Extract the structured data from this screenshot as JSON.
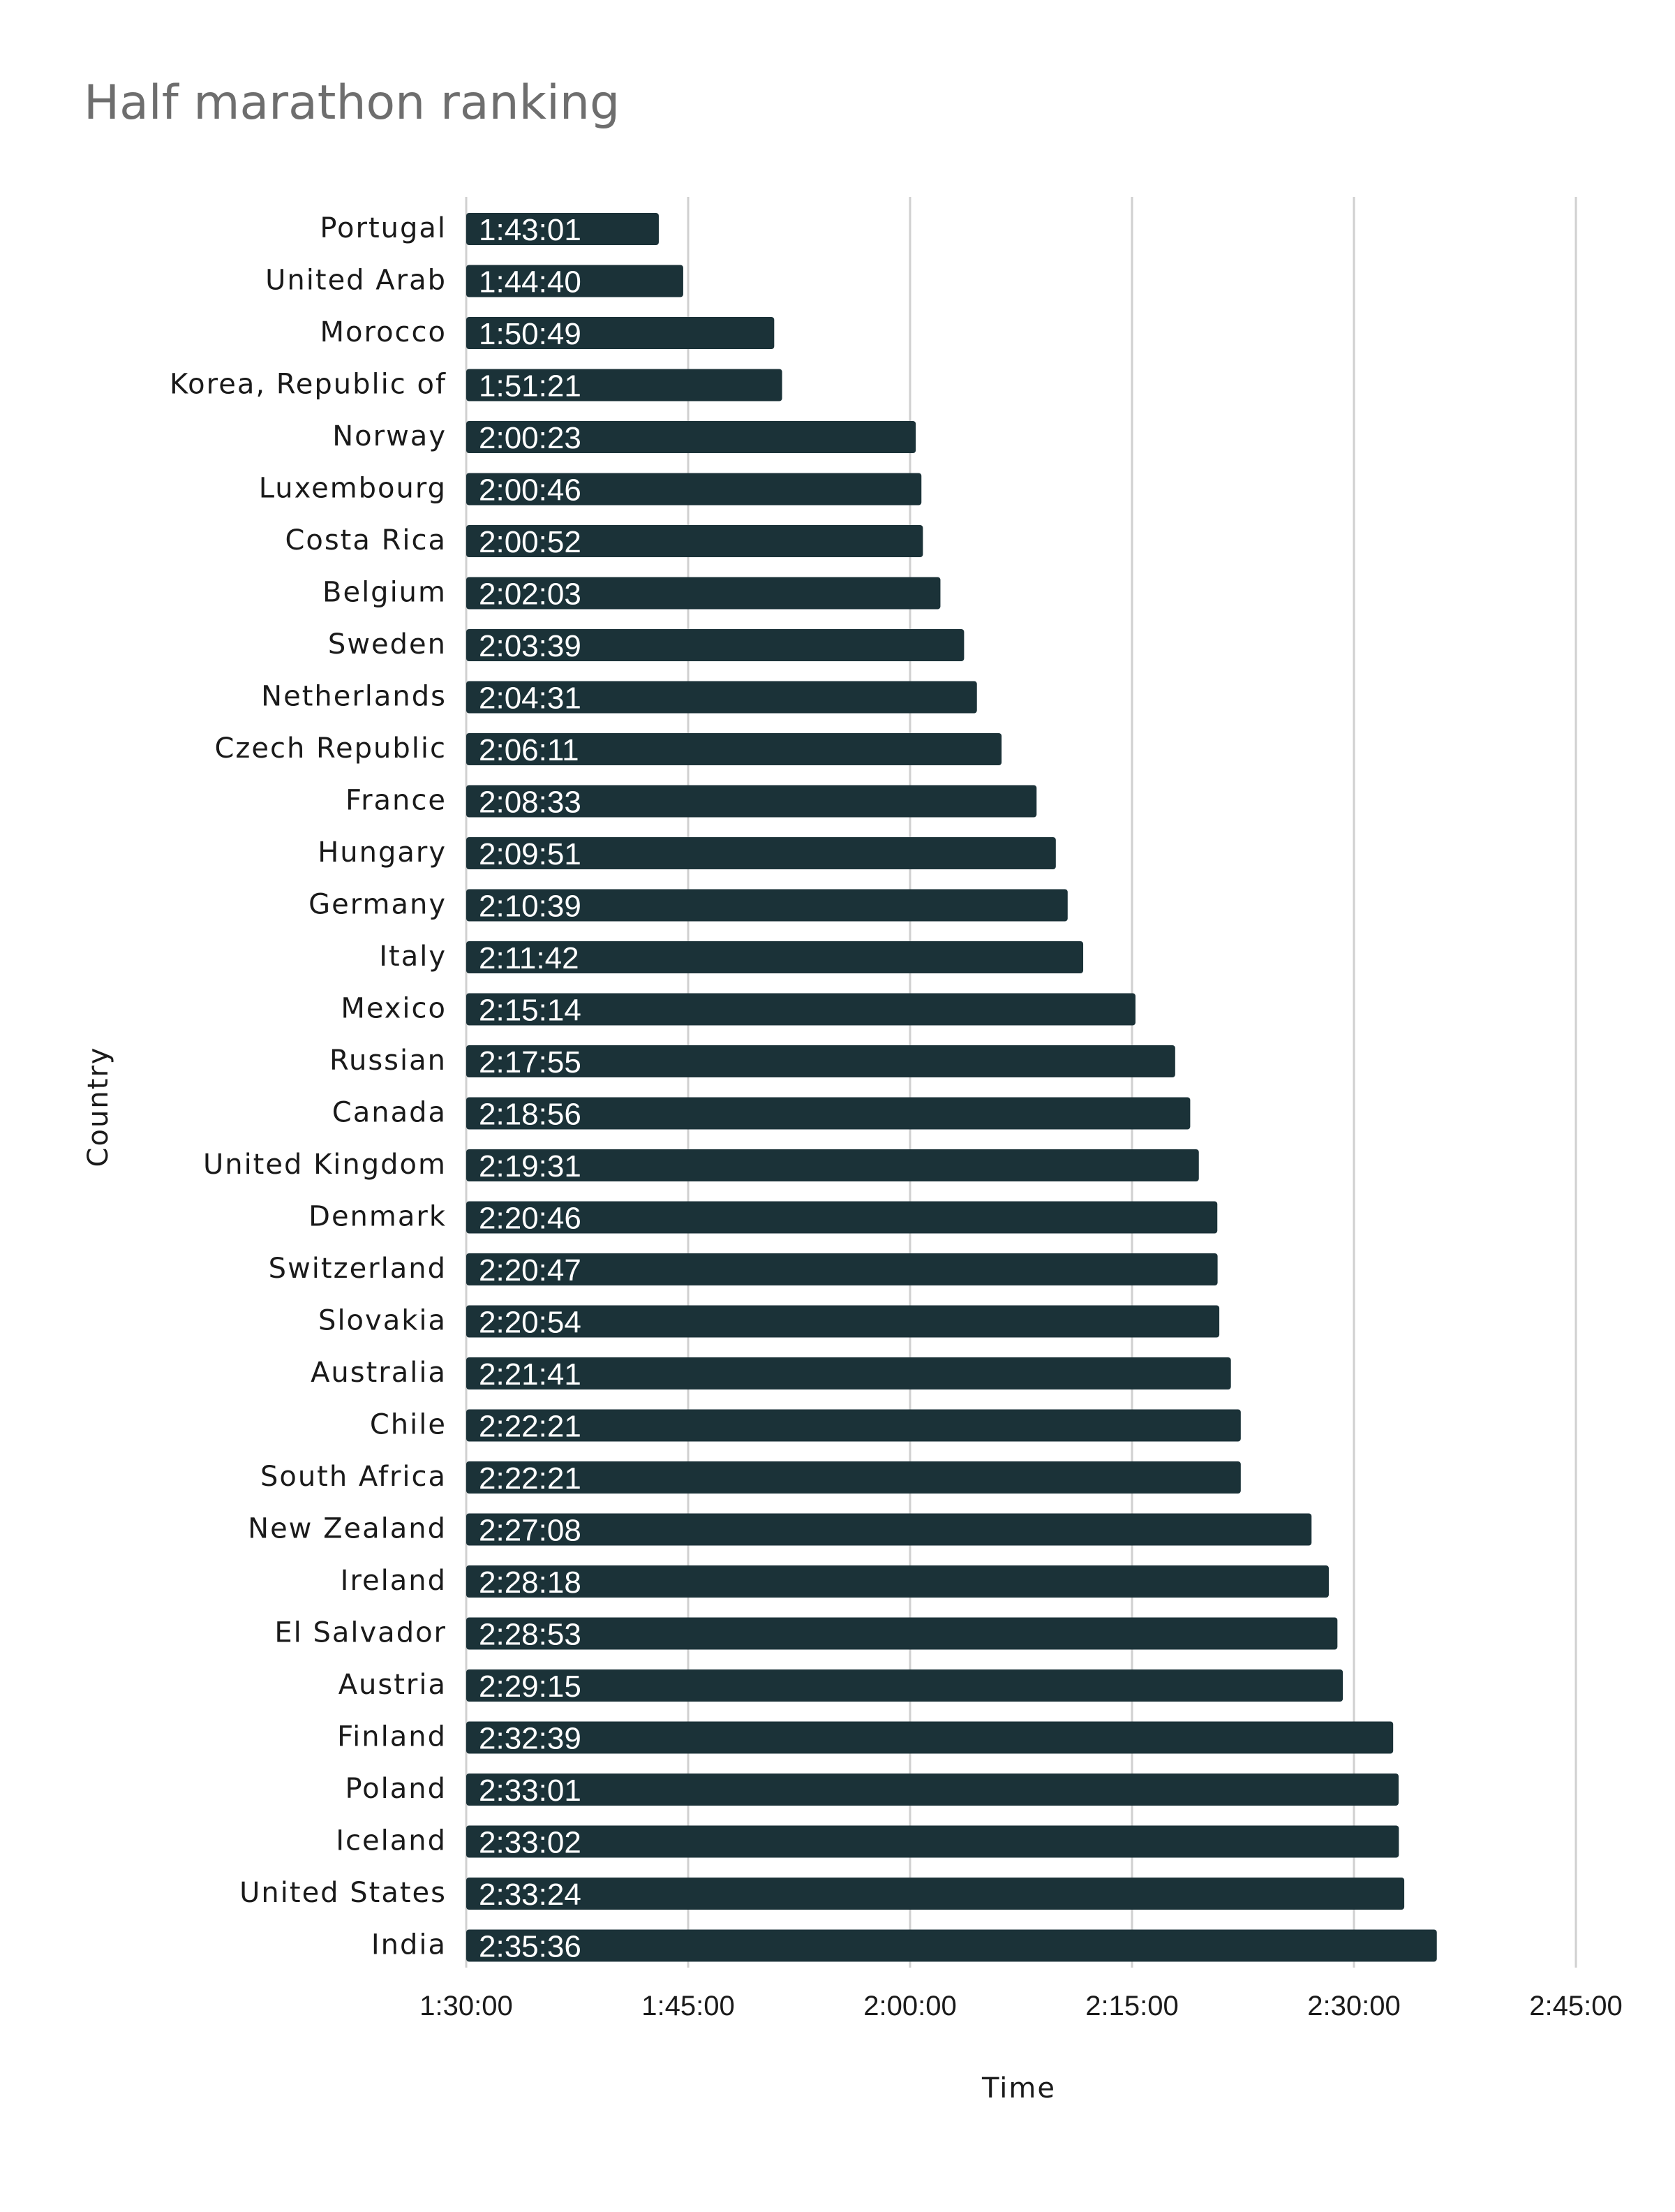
{
  "chart_data": {
    "type": "bar",
    "orientation": "horizontal",
    "title": "Half marathon ranking",
    "xlabel": "Time",
    "ylabel": "Country",
    "xlim_seconds": [
      5400,
      9900
    ],
    "xticks": [
      "1:30:00",
      "1:45:00",
      "2:00:00",
      "2:15:00",
      "2:30:00",
      "2:45:00"
    ],
    "grid": true,
    "bar_color": "#1b3238",
    "categories": [
      "Portugal",
      "United Arab",
      "Morocco",
      "Korea, Republic of",
      "Norway",
      "Luxembourg",
      "Costa Rica",
      "Belgium",
      "Sweden",
      "Netherlands",
      "Czech Republic",
      "France",
      "Hungary",
      "Germany",
      "Italy",
      "Mexico",
      "Russian",
      "Canada",
      "United Kingdom",
      "Denmark",
      "Switzerland",
      "Slovakia",
      "Australia",
      "Chile",
      "South Africa",
      "New Zealand",
      "Ireland",
      "El Salvador",
      "Austria",
      "Finland",
      "Poland",
      "Iceland",
      "United States",
      "India"
    ],
    "values": [
      "1:43:01",
      "1:44:40",
      "1:50:49",
      "1:51:21",
      "2:00:23",
      "2:00:46",
      "2:00:52",
      "2:02:03",
      "2:03:39",
      "2:04:31",
      "2:06:11",
      "2:08:33",
      "2:09:51",
      "2:10:39",
      "2:11:42",
      "2:15:14",
      "2:17:55",
      "2:18:56",
      "2:19:31",
      "2:20:46",
      "2:20:47",
      "2:20:54",
      "2:21:41",
      "2:22:21",
      "2:22:21",
      "2:27:08",
      "2:28:18",
      "2:28:53",
      "2:29:15",
      "2:32:39",
      "2:33:01",
      "2:33:02",
      "2:33:24",
      "2:35:36"
    ]
  }
}
